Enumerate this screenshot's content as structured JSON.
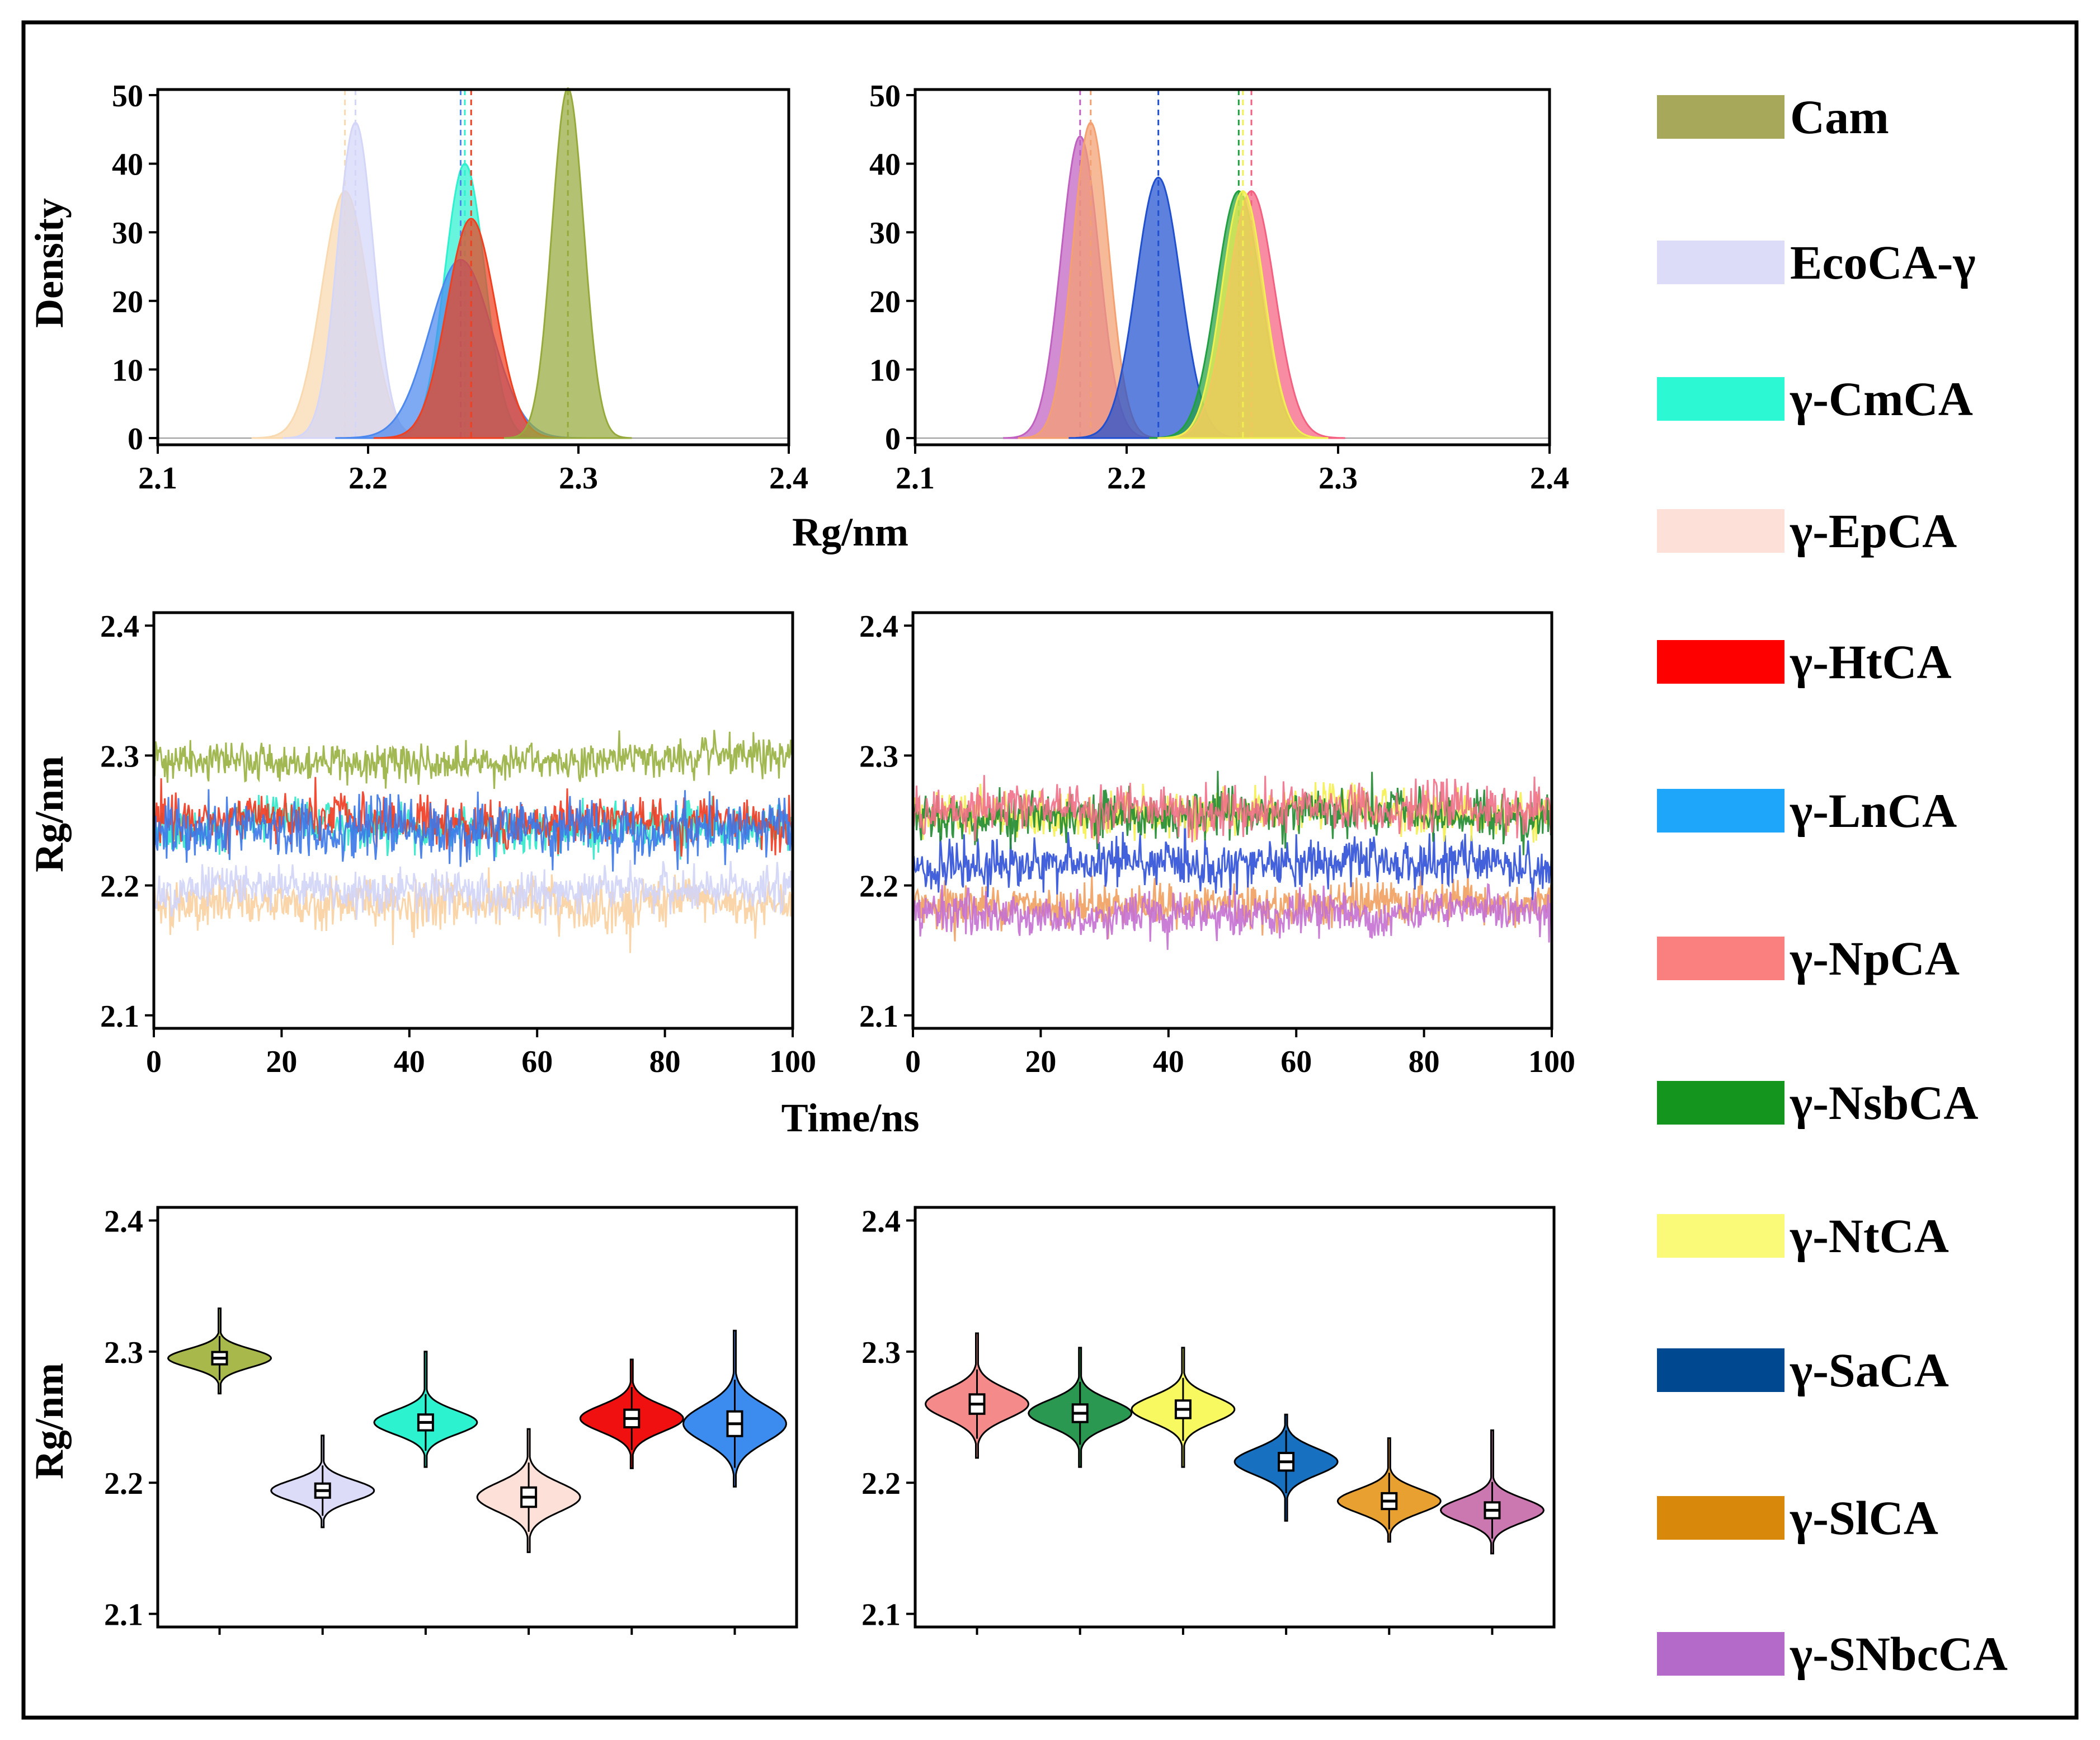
{
  "legend": [
    {
      "label": "Cam",
      "color": "#a8a85a"
    },
    {
      "label": "EcoCA-γ",
      "color": "#dcdcf8"
    },
    {
      "label": "γ-CmCA",
      "color": "#2cf8d4"
    },
    {
      "label": "γ-EpCA",
      "color": "#fde0d8"
    },
    {
      "label": "γ-HtCA",
      "color": "#ff0000"
    },
    {
      "label": "γ-LnCA",
      "color": "#1ea6fa"
    },
    {
      "label": "γ-NpCA",
      "color": "#fa8080"
    },
    {
      "label": "γ-NsbCA",
      "color": "#14961e"
    },
    {
      "label": "γ-NtCA",
      "color": "#fafa78"
    },
    {
      "label": "γ-SaCA",
      "color": "#004890"
    },
    {
      "label": "γ-SlCA",
      "color": "#d8880a"
    },
    {
      "label": "γ-SNbcCA",
      "color": "#b46ac8"
    }
  ],
  "chart_data": [
    {
      "id": "density-left",
      "type": "area",
      "xlabel": "Rg/nm",
      "ylabel": "Density",
      "xlim": [
        2.1,
        2.4
      ],
      "ylim": [
        0,
        50
      ],
      "xticks": [
        "2.1",
        "2.2",
        "2.3",
        "2.4"
      ],
      "yticks": [
        "0",
        "10",
        "20",
        "30",
        "40",
        "50"
      ],
      "series": [
        {
          "name": "γ-EpCA",
          "color": "#f9d9b0",
          "mean": 2.189,
          "sd": 0.011,
          "peak": 36
        },
        {
          "name": "EcoCA-γ",
          "color": "#d4d6f8",
          "mean": 2.194,
          "sd": 0.0085,
          "peak": 46
        },
        {
          "name": "γ-CmCA",
          "color": "#2cf2d0",
          "mean": 2.246,
          "sd": 0.0095,
          "peak": 40
        },
        {
          "name": "γ-LnCA",
          "color": "#4c88ee",
          "mean": 2.244,
          "sd": 0.0148,
          "peak": 26
        },
        {
          "name": "γ-HtCA",
          "color": "#f04020",
          "mean": 2.249,
          "sd": 0.0115,
          "peak": 32
        },
        {
          "name": "Cam",
          "color": "#96aa3c",
          "mean": 2.295,
          "sd": 0.0075,
          "peak": 51
        }
      ]
    },
    {
      "id": "density-right",
      "type": "area",
      "xlabel": "",
      "ylabel": "",
      "xlim": [
        2.1,
        2.4
      ],
      "ylim": [
        0,
        50
      ],
      "xticks": [
        "2.1",
        "2.2",
        "2.3",
        "2.4"
      ],
      "yticks": [
        "0",
        "10",
        "20",
        "30",
        "40",
        "50"
      ],
      "series": [
        {
          "name": "γ-SNbcCA",
          "color": "#c060c0",
          "mean": 2.178,
          "sd": 0.009,
          "peak": 44
        },
        {
          "name": "γ-SlCA",
          "color": "#f4a070",
          "mean": 2.183,
          "sd": 0.0085,
          "peak": 46
        },
        {
          "name": "γ-SaCA",
          "color": "#2050d0",
          "mean": 2.215,
          "sd": 0.0105,
          "peak": 38
        },
        {
          "name": "γ-NsbCA",
          "color": "#20a040",
          "mean": 2.253,
          "sd": 0.0105,
          "peak": 36
        },
        {
          "name": "γ-NpCA",
          "color": "#f46080",
          "mean": 2.259,
          "sd": 0.011,
          "peak": 36
        },
        {
          "name": "γ-NtCA",
          "color": "#f0f050",
          "mean": 2.255,
          "sd": 0.01,
          "peak": 36
        }
      ]
    },
    {
      "id": "time-left",
      "type": "line",
      "xlabel": "Time/ns",
      "ylabel": "Rg/nm",
      "xlim": [
        0,
        100
      ],
      "ylim": [
        2.09,
        2.41
      ],
      "xticks": [
        "0",
        "20",
        "40",
        "60",
        "80",
        "100"
      ],
      "yticks": [
        "2.1",
        "2.2",
        "2.3",
        "2.4"
      ],
      "series": [
        {
          "name": "γ-EpCA",
          "color": "#f8d0a0",
          "mean": 2.186,
          "noise": 0.009
        },
        {
          "name": "EcoCA-γ",
          "color": "#d2d4f6",
          "mean": 2.196,
          "noise": 0.008
        },
        {
          "name": "γ-CmCA",
          "color": "#30e8c8",
          "mean": 2.245,
          "noise": 0.009
        },
        {
          "name": "γ-HtCA",
          "color": "#f03a20",
          "mean": 2.249,
          "noise": 0.009
        },
        {
          "name": "γ-LnCA",
          "color": "#3c78e8",
          "mean": 2.242,
          "noise": 0.011
        },
        {
          "name": "Cam",
          "color": "#98b040",
          "mean": 2.296,
          "noise": 0.007
        }
      ]
    },
    {
      "id": "time-right",
      "type": "line",
      "xlabel": "",
      "ylabel": "",
      "xlim": [
        0,
        100
      ],
      "ylim": [
        2.09,
        2.41
      ],
      "xticks": [
        "0",
        "20",
        "40",
        "60",
        "80",
        "100"
      ],
      "yticks": [
        "2.1",
        "2.2",
        "2.3",
        "2.4"
      ],
      "series": [
        {
          "name": "γ-SlCA",
          "color": "#f0a060",
          "mean": 2.186,
          "noise": 0.008
        },
        {
          "name": "γ-SNbcCA",
          "color": "#c470d0",
          "mean": 2.178,
          "noise": 0.008
        },
        {
          "name": "γ-SaCA",
          "color": "#3050d8",
          "mean": 2.216,
          "noise": 0.009
        },
        {
          "name": "γ-NtCA",
          "color": "#f4f050",
          "mean": 2.256,
          "noise": 0.009
        },
        {
          "name": "γ-NsbCA",
          "color": "#208a30",
          "mean": 2.253,
          "noise": 0.009
        },
        {
          "name": "γ-NpCA",
          "color": "#f07088",
          "mean": 2.259,
          "noise": 0.009
        }
      ]
    },
    {
      "id": "violin-left",
      "type": "violin",
      "xlabel": "",
      "ylabel": "Rg/nm",
      "ylim": [
        2.09,
        2.41
      ],
      "yticks": [
        "2.1",
        "2.2",
        "2.3",
        "2.4"
      ],
      "series": [
        {
          "name": "Cam",
          "color": "#a8b84a",
          "median": 2.295,
          "min": 2.268,
          "max": 2.333,
          "sd": 0.007
        },
        {
          "name": "EcoCA-γ",
          "color": "#dcdcf8",
          "median": 2.194,
          "min": 2.166,
          "max": 2.236,
          "sd": 0.008
        },
        {
          "name": "γ-CmCA",
          "color": "#2cf2d0",
          "median": 2.246,
          "min": 2.212,
          "max": 2.3,
          "sd": 0.009
        },
        {
          "name": "γ-EpCA",
          "color": "#fde0d8",
          "median": 2.189,
          "min": 2.147,
          "max": 2.241,
          "sd": 0.011
        },
        {
          "name": "γ-HtCA",
          "color": "#f01010",
          "median": 2.249,
          "min": 2.211,
          "max": 2.294,
          "sd": 0.01
        },
        {
          "name": "γ-LnCA",
          "color": "#3c8cf0",
          "median": 2.245,
          "min": 2.197,
          "max": 2.316,
          "sd": 0.014
        }
      ]
    },
    {
      "id": "violin-right",
      "type": "violin",
      "xlabel": "",
      "ylabel": "",
      "ylim": [
        2.09,
        2.41
      ],
      "yticks": [
        "2.1",
        "2.2",
        "2.3",
        "2.4"
      ],
      "series": [
        {
          "name": "γ-NpCA",
          "color": "#f48a8a",
          "median": 2.26,
          "min": 2.219,
          "max": 2.314,
          "sd": 0.011
        },
        {
          "name": "γ-NsbCA",
          "color": "#2a9850",
          "median": 2.253,
          "min": 2.212,
          "max": 2.303,
          "sd": 0.01
        },
        {
          "name": "γ-NtCA",
          "color": "#f8f860",
          "median": 2.256,
          "min": 2.212,
          "max": 2.303,
          "sd": 0.01
        },
        {
          "name": "γ-SaCA",
          "color": "#1870c0",
          "median": 2.216,
          "min": 2.171,
          "max": 2.252,
          "sd": 0.01
        },
        {
          "name": "γ-SlCA",
          "color": "#e8a030",
          "median": 2.186,
          "min": 2.155,
          "max": 2.234,
          "sd": 0.009
        },
        {
          "name": "γ-SNbcCA",
          "color": "#cc78b0",
          "median": 2.179,
          "min": 2.146,
          "max": 2.24,
          "sd": 0.009
        }
      ]
    }
  ]
}
